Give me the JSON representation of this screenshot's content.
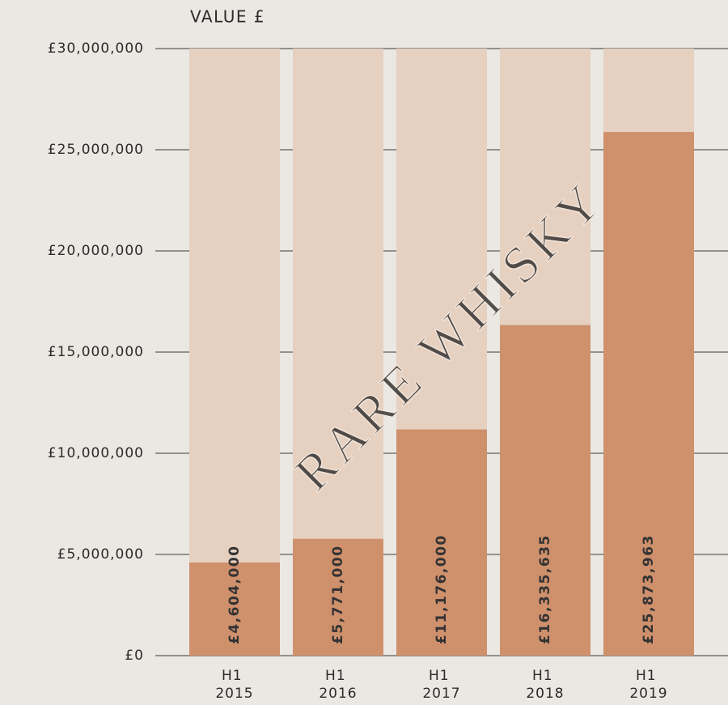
{
  "chart_data": {
    "type": "bar",
    "title": "VALUE £",
    "categories": [
      "H1 2015",
      "H1 2016",
      "H1 2017",
      "H1 2018",
      "H1 2019"
    ],
    "values": [
      4604000,
      5771000,
      11176000,
      16335635,
      25873963
    ],
    "value_labels": [
      "£4,604,000",
      "£5,771,000",
      "£11,176,000",
      "£16,335,635",
      "£25,873,963"
    ],
    "color": "#cf906c",
    "track_color": "#e6d0c0",
    "ylim": [
      0,
      30000000
    ],
    "yticks": [
      {
        "value": 0,
        "label": "£0"
      },
      {
        "value": 5000000,
        "label": "£5,000,000"
      },
      {
        "value": 10000000,
        "label": "£10,000,000"
      },
      {
        "value": 15000000,
        "label": "£15,000,000"
      },
      {
        "value": 20000000,
        "label": "£20,000,000"
      },
      {
        "value": 25000000,
        "label": "£25,000,000"
      },
      {
        "value": 30000000,
        "label": "£30,000,000"
      }
    ],
    "grid": true,
    "watermark": "RARE WHISKY"
  }
}
